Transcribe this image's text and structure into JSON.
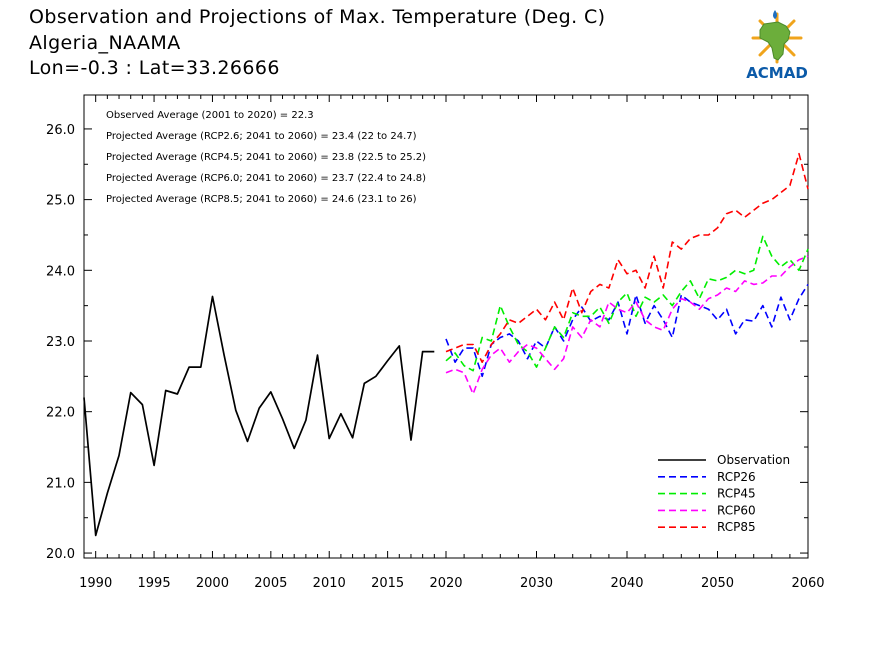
{
  "header": {
    "title": "Observation and Projections of Max. Temperature (Deg. C)",
    "location": "Algeria_NAAMA",
    "coords": "Lon=-0.3 : Lat=33.26666"
  },
  "logo": {
    "text": "ACMAD",
    "colors": {
      "africa": "#6cae3b",
      "rays": "#f0a41c",
      "drop": "#1f6fc0",
      "text": "#0b5aa8"
    }
  },
  "chart_data": {
    "type": "line",
    "xlim": [
      1989,
      2060
    ],
    "ylim": [
      19.93,
      26.48
    ],
    "x_ticks_major": [
      1990,
      1995,
      2000,
      2005,
      2010,
      2015,
      2020,
      2030,
      2040,
      2050,
      2060
    ],
    "y_ticks": [
      "20.0",
      "21.0",
      "22.0",
      "23.0",
      "24.0",
      "25.0",
      "26.0"
    ],
    "y_tick_values": [
      20,
      21,
      22,
      23,
      24,
      25,
      26
    ],
    "annotations": [
      "Observed Average (2001 to 2020) = 22.3",
      "Projected Average (RCP2.6; 2041 to 2060) = 23.4 (22 to 24.7)",
      "Projected Average (RCP4.5; 2041 to 2060) = 23.8 (22.5 to 25.2)",
      "Projected Average (RCP6.0; 2041 to 2060) = 23.7 (22.4 to 24.8)",
      "Projected Average (RCP8.5; 2041 to 2060) = 24.6 (23.1 to 26)"
    ],
    "legend_position": "bottom-right",
    "series": [
      {
        "name": "Observation",
        "color": "#000000",
        "dashed": false,
        "x": [
          1989,
          1990,
          1991,
          1992,
          1993,
          1994,
          1995,
          1996,
          1997,
          1998,
          1999,
          2000,
          2001,
          2002,
          2003,
          2004,
          2005,
          2006,
          2007,
          2008,
          2009,
          2010,
          2011,
          2012,
          2013,
          2014,
          2015,
          2016,
          2017,
          2018,
          2019
        ],
        "values": [
          22.2,
          20.25,
          20.85,
          21.38,
          22.27,
          22.1,
          21.24,
          22.3,
          22.25,
          22.63,
          22.63,
          23.63,
          22.8,
          22.02,
          21.58,
          22.05,
          22.28,
          21.9,
          21.48,
          21.88,
          22.8,
          21.62,
          21.97,
          21.63,
          22.4,
          22.5,
          22.72,
          22.93,
          21.6,
          22.85,
          22.85
        ]
      },
      {
        "name": "RCP26",
        "color": "#0000ff",
        "dashed": true,
        "x": [
          2020,
          2021,
          2022,
          2023,
          2024,
          2025,
          2026,
          2027,
          2028,
          2029,
          2030,
          2031,
          2032,
          2033,
          2034,
          2035,
          2036,
          2037,
          2038,
          2039,
          2040,
          2041,
          2042,
          2043,
          2044,
          2045,
          2046,
          2047,
          2048,
          2049,
          2050,
          2051,
          2052,
          2053,
          2054,
          2055,
          2056,
          2057,
          2058,
          2059,
          2060
        ],
        "values": [
          23.03,
          22.7,
          22.9,
          22.9,
          22.5,
          22.95,
          23.05,
          23.1,
          23.0,
          22.75,
          23.0,
          22.9,
          23.2,
          23.0,
          23.3,
          23.48,
          23.28,
          23.35,
          23.3,
          23.55,
          23.1,
          23.65,
          23.25,
          23.5,
          23.3,
          23.05,
          23.65,
          23.55,
          23.5,
          23.45,
          23.3,
          23.45,
          23.1,
          23.3,
          23.28,
          23.5,
          23.2,
          23.62,
          23.3,
          23.6,
          23.8
        ]
      },
      {
        "name": "RCP45",
        "color": "#00ee00",
        "dashed": true,
        "x": [
          2020,
          2021,
          2022,
          2023,
          2024,
          2025,
          2026,
          2027,
          2028,
          2029,
          2030,
          2031,
          2032,
          2033,
          2034,
          2035,
          2036,
          2037,
          2038,
          2039,
          2040,
          2041,
          2042,
          2043,
          2044,
          2045,
          2046,
          2047,
          2048,
          2049,
          2050,
          2051,
          2052,
          2053,
          2054,
          2055,
          2056,
          2057,
          2058,
          2059,
          2060
        ],
        "values": [
          22.72,
          22.83,
          22.65,
          22.58,
          23.05,
          23.0,
          23.5,
          23.2,
          22.95,
          22.85,
          22.63,
          22.9,
          23.2,
          23.05,
          23.4,
          23.35,
          23.35,
          23.48,
          23.25,
          23.55,
          23.68,
          23.35,
          23.62,
          23.55,
          23.65,
          23.5,
          23.7,
          23.85,
          23.6,
          23.88,
          23.85,
          23.9,
          24.0,
          23.95,
          24.0,
          24.48,
          24.2,
          24.05,
          24.15,
          24.0,
          24.3
        ]
      },
      {
        "name": "RCP60",
        "color": "#ff00ff",
        "dashed": true,
        "x": [
          2020,
          2021,
          2022,
          2023,
          2024,
          2025,
          2026,
          2027,
          2028,
          2029,
          2030,
          2031,
          2032,
          2033,
          2034,
          2035,
          2036,
          2037,
          2038,
          2039,
          2040,
          2041,
          2042,
          2043,
          2044,
          2045,
          2046,
          2047,
          2048,
          2049,
          2050,
          2051,
          2052,
          2053,
          2054,
          2055,
          2056,
          2057,
          2058,
          2059,
          2060
        ],
        "values": [
          22.55,
          22.6,
          22.55,
          22.25,
          22.6,
          22.8,
          22.9,
          22.7,
          22.85,
          22.95,
          22.9,
          22.75,
          22.6,
          22.75,
          23.2,
          23.05,
          23.3,
          23.2,
          23.55,
          23.45,
          23.4,
          23.55,
          23.3,
          23.2,
          23.15,
          23.45,
          23.6,
          23.55,
          23.45,
          23.6,
          23.65,
          23.75,
          23.7,
          23.85,
          23.8,
          23.82,
          23.92,
          23.92,
          24.05,
          24.15,
          24.2
        ]
      },
      {
        "name": "RCP85",
        "color": "#ff0000",
        "dashed": true,
        "x": [
          2020,
          2021,
          2022,
          2023,
          2024,
          2025,
          2026,
          2027,
          2028,
          2029,
          2030,
          2031,
          2032,
          2033,
          2034,
          2035,
          2036,
          2037,
          2038,
          2039,
          2040,
          2041,
          2042,
          2043,
          2044,
          2045,
          2046,
          2047,
          2048,
          2049,
          2050,
          2051,
          2052,
          2053,
          2054,
          2055,
          2056,
          2057,
          2058,
          2059,
          2060
        ],
        "values": [
          22.85,
          22.9,
          22.95,
          22.95,
          22.7,
          22.95,
          23.1,
          23.3,
          23.25,
          23.35,
          23.45,
          23.3,
          23.55,
          23.3,
          23.75,
          23.4,
          23.7,
          23.8,
          23.75,
          24.15,
          23.95,
          24.0,
          23.75,
          24.2,
          23.75,
          24.4,
          24.3,
          24.45,
          24.5,
          24.5,
          24.6,
          24.8,
          24.85,
          24.75,
          24.85,
          24.95,
          25.0,
          25.1,
          25.2,
          25.65,
          25.15
        ]
      }
    ]
  }
}
